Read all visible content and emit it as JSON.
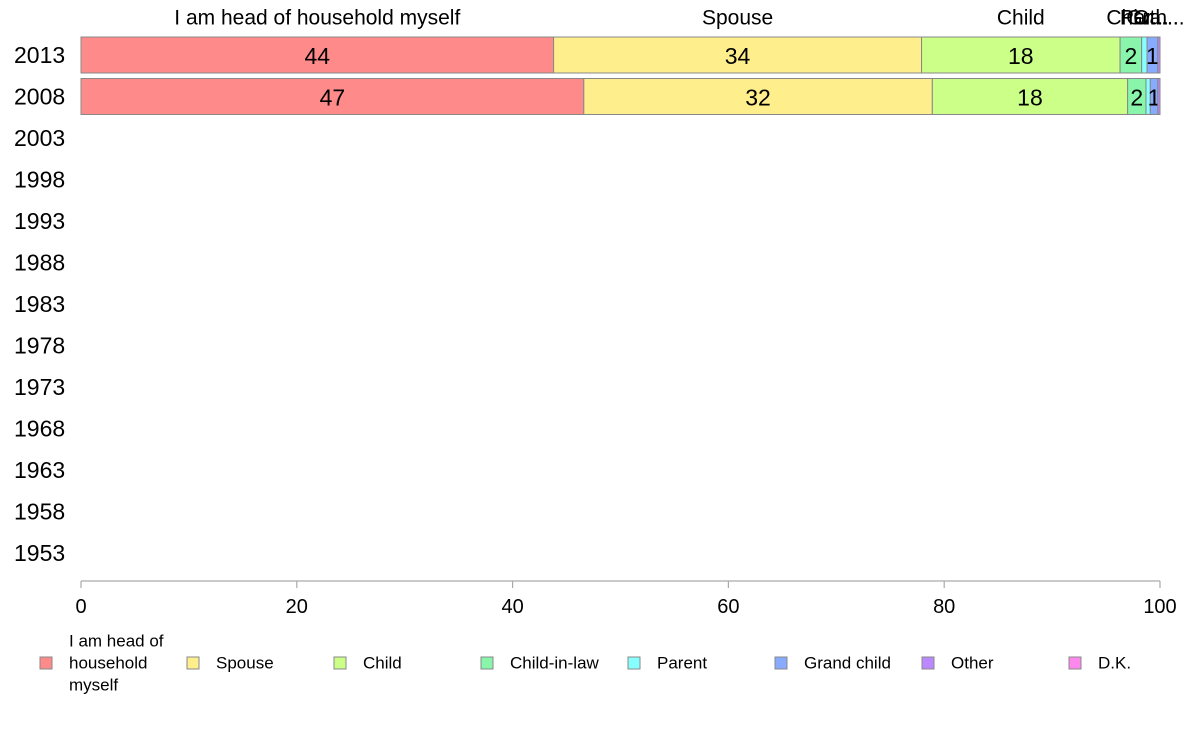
{
  "chart_data": {
    "type": "bar",
    "orientation": "horizontal",
    "stacked": true,
    "categories": [
      "2013",
      "2008",
      "2003",
      "1998",
      "1993",
      "1988",
      "1983",
      "1978",
      "1973",
      "1968",
      "1963",
      "1958",
      "1953"
    ],
    "series": [
      {
        "name": "I am head of household myself",
        "color": "#ff8a8a",
        "values": [
          43.8,
          46.6,
          null,
          null,
          null,
          null,
          null,
          null,
          null,
          null,
          null,
          null,
          null
        ],
        "labels": [
          "44",
          "47"
        ]
      },
      {
        "name": "Spouse",
        "color": "#ffee8c",
        "values": [
          34.1,
          32.3,
          null,
          null,
          null,
          null,
          null,
          null,
          null,
          null,
          null,
          null,
          null
        ],
        "labels": [
          "34",
          "32"
        ]
      },
      {
        "name": "Child",
        "color": "#ccff88",
        "values": [
          18.4,
          18.1,
          null,
          null,
          null,
          null,
          null,
          null,
          null,
          null,
          null,
          null,
          null
        ],
        "labels": [
          "18",
          "18"
        ]
      },
      {
        "name": "Child-in-law",
        "color": "#88f5aa",
        "values": [
          2.0,
          1.7,
          null,
          null,
          null,
          null,
          null,
          null,
          null,
          null,
          null,
          null,
          null
        ],
        "labels": [
          "2",
          "2"
        ]
      },
      {
        "name": "Parent",
        "color": "#88ffff",
        "values": [
          0.5,
          0.4,
          null,
          null,
          null,
          null,
          null,
          null,
          null,
          null,
          null,
          null,
          null
        ],
        "labels": [
          "",
          ""
        ]
      },
      {
        "name": "Grand child",
        "color": "#88aaff",
        "values": [
          1.0,
          0.7,
          null,
          null,
          null,
          null,
          null,
          null,
          null,
          null,
          null,
          null,
          null
        ],
        "labels": [
          "1",
          "1"
        ]
      },
      {
        "name": "Other",
        "color": "#bb88ff",
        "values": [
          0.2,
          0.2,
          null,
          null,
          null,
          null,
          null,
          null,
          null,
          null,
          null,
          null,
          null
        ],
        "labels": [
          "",
          ""
        ]
      },
      {
        "name": "D.K.",
        "color": "#ff88ee",
        "values": [
          0.0,
          0.0,
          null,
          null,
          null,
          null,
          null,
          null,
          null,
          null,
          null,
          null,
          null
        ],
        "labels": [
          "",
          ""
        ]
      }
    ],
    "top_labels": [
      "I am head of household myself",
      "Spouse",
      "Child",
      "Chi...",
      "Par...",
      "Gra...",
      "Oth..."
    ],
    "xlim": [
      0,
      100
    ],
    "xticks": [
      "0",
      "20",
      "40",
      "60",
      "80",
      "100"
    ],
    "legend": {
      "placement": "bottom",
      "entries": [
        {
          "lines": [
            "I am head of",
            "household",
            "myself"
          ],
          "color": "#ff8a8a"
        },
        {
          "lines": [
            "Spouse"
          ],
          "color": "#ffee8c"
        },
        {
          "lines": [
            "Child"
          ],
          "color": "#ccff88"
        },
        {
          "lines": [
            "Child-in-law"
          ],
          "color": "#88f5aa"
        },
        {
          "lines": [
            "Parent"
          ],
          "color": "#88ffff"
        },
        {
          "lines": [
            "Grand child"
          ],
          "color": "#88aaff"
        },
        {
          "lines": [
            "Other"
          ],
          "color": "#bb88ff"
        },
        {
          "lines": [
            "D.K."
          ],
          "color": "#ff88ee"
        }
      ]
    },
    "grid": false
  }
}
